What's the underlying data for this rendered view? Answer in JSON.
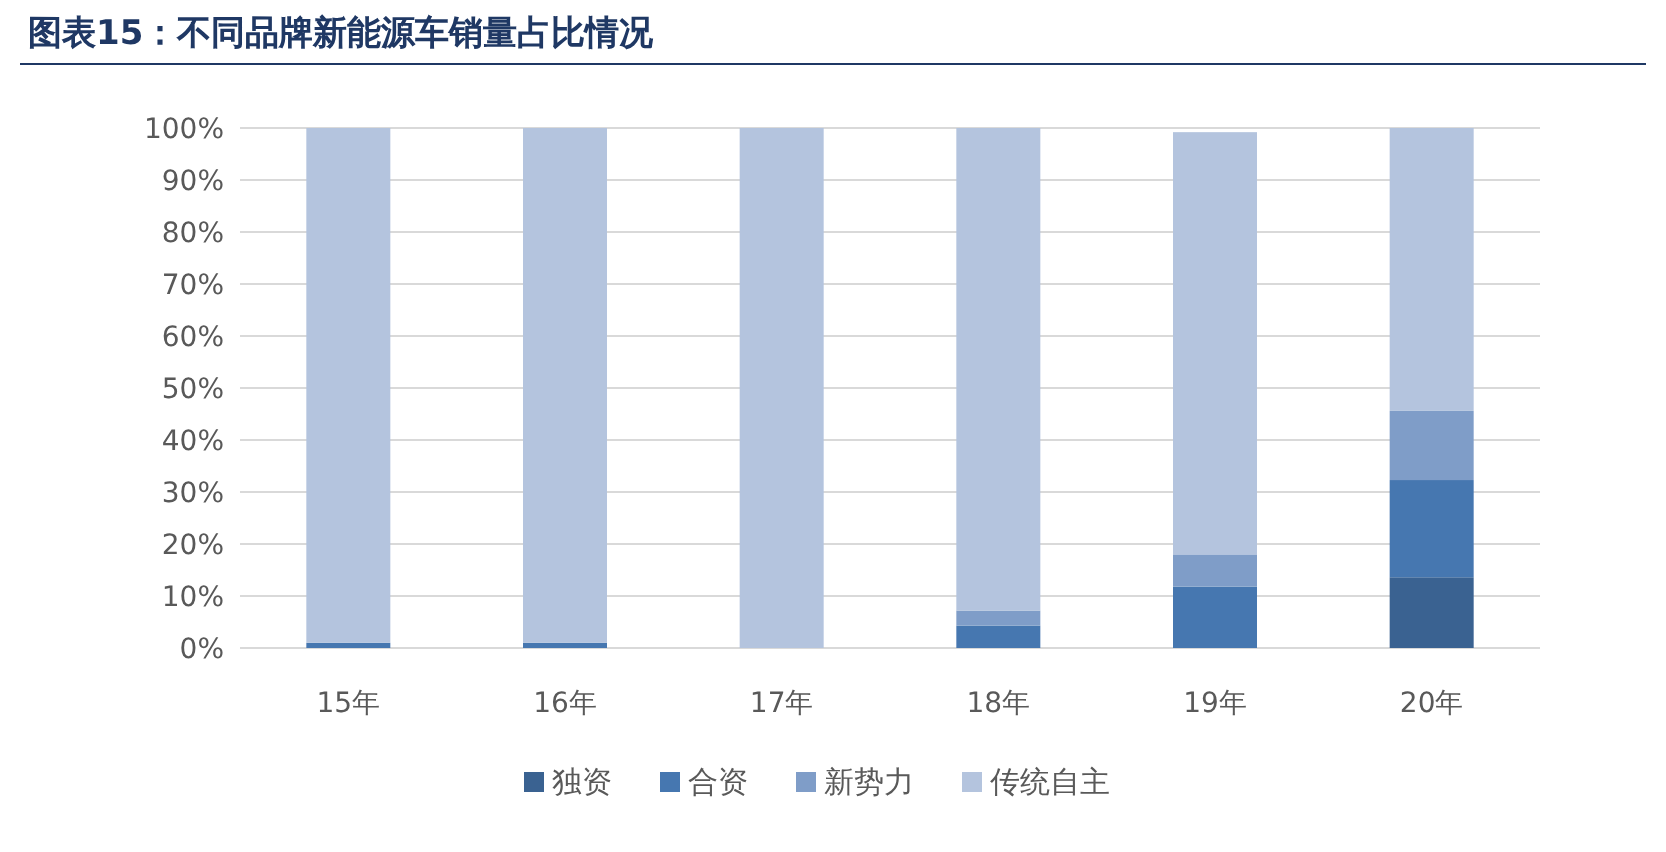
{
  "chart_data": {
    "type": "bar",
    "stacked": true,
    "title": "图表15：不同品牌新能源车销量占比情况",
    "categories": [
      "15年",
      "16年",
      "17年",
      "18年",
      "19年",
      "20年"
    ],
    "series": [
      {
        "name": "独资",
        "color": "#3a6291",
        "values": [
          0,
          0,
          0,
          0,
          0,
          13.6
        ]
      },
      {
        "name": "合资",
        "color": "#4677b0",
        "values": [
          1,
          1,
          0,
          4.3,
          11.8,
          18.7
        ]
      },
      {
        "name": "新势力",
        "color": "#7f9dc8",
        "values": [
          0,
          0,
          0,
          2.9,
          6.2,
          13.3
        ]
      },
      {
        "name": "传统自主",
        "color": "#b4c4de",
        "values": [
          99,
          99,
          100,
          92.8,
          81.2,
          54.4
        ]
      }
    ],
    "ylim": [
      0,
      100
    ],
    "yticks": [
      {
        "value": 0,
        "label": "0%"
      },
      {
        "value": 10,
        "label": "10%"
      },
      {
        "value": 20,
        "label": "20%"
      },
      {
        "value": 30,
        "label": "30%"
      },
      {
        "value": 40,
        "label": "40%"
      },
      {
        "value": 50,
        "label": "50%"
      },
      {
        "value": 60,
        "label": "60%"
      },
      {
        "value": 70,
        "label": "70%"
      },
      {
        "value": 80,
        "label": "80%"
      },
      {
        "value": 90,
        "label": "90%"
      },
      {
        "value": 100,
        "label": "100%"
      }
    ],
    "grid": "y",
    "legend": "bottom"
  }
}
